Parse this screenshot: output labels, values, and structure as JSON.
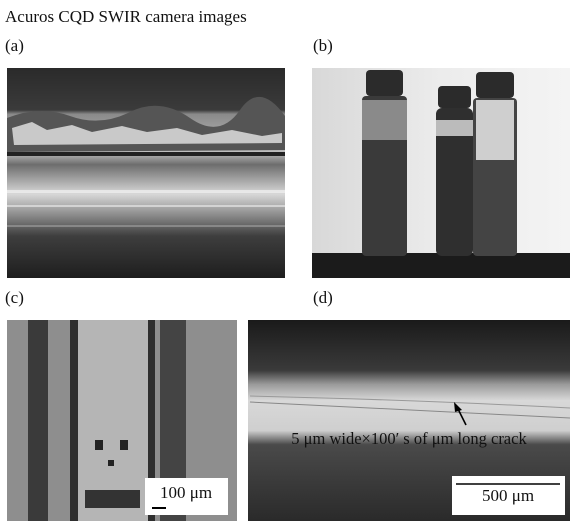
{
  "title": "Acuros CQD SWIR camera images",
  "panels": [
    {
      "label": "(a)"
    },
    {
      "label": "(b)"
    },
    {
      "label": "(c)",
      "scale_bar": "100 μm"
    },
    {
      "label": "(d)",
      "annotation": "5 μm wide×100′ s of μm long crack",
      "scale_bar": "500 μm"
    }
  ]
}
